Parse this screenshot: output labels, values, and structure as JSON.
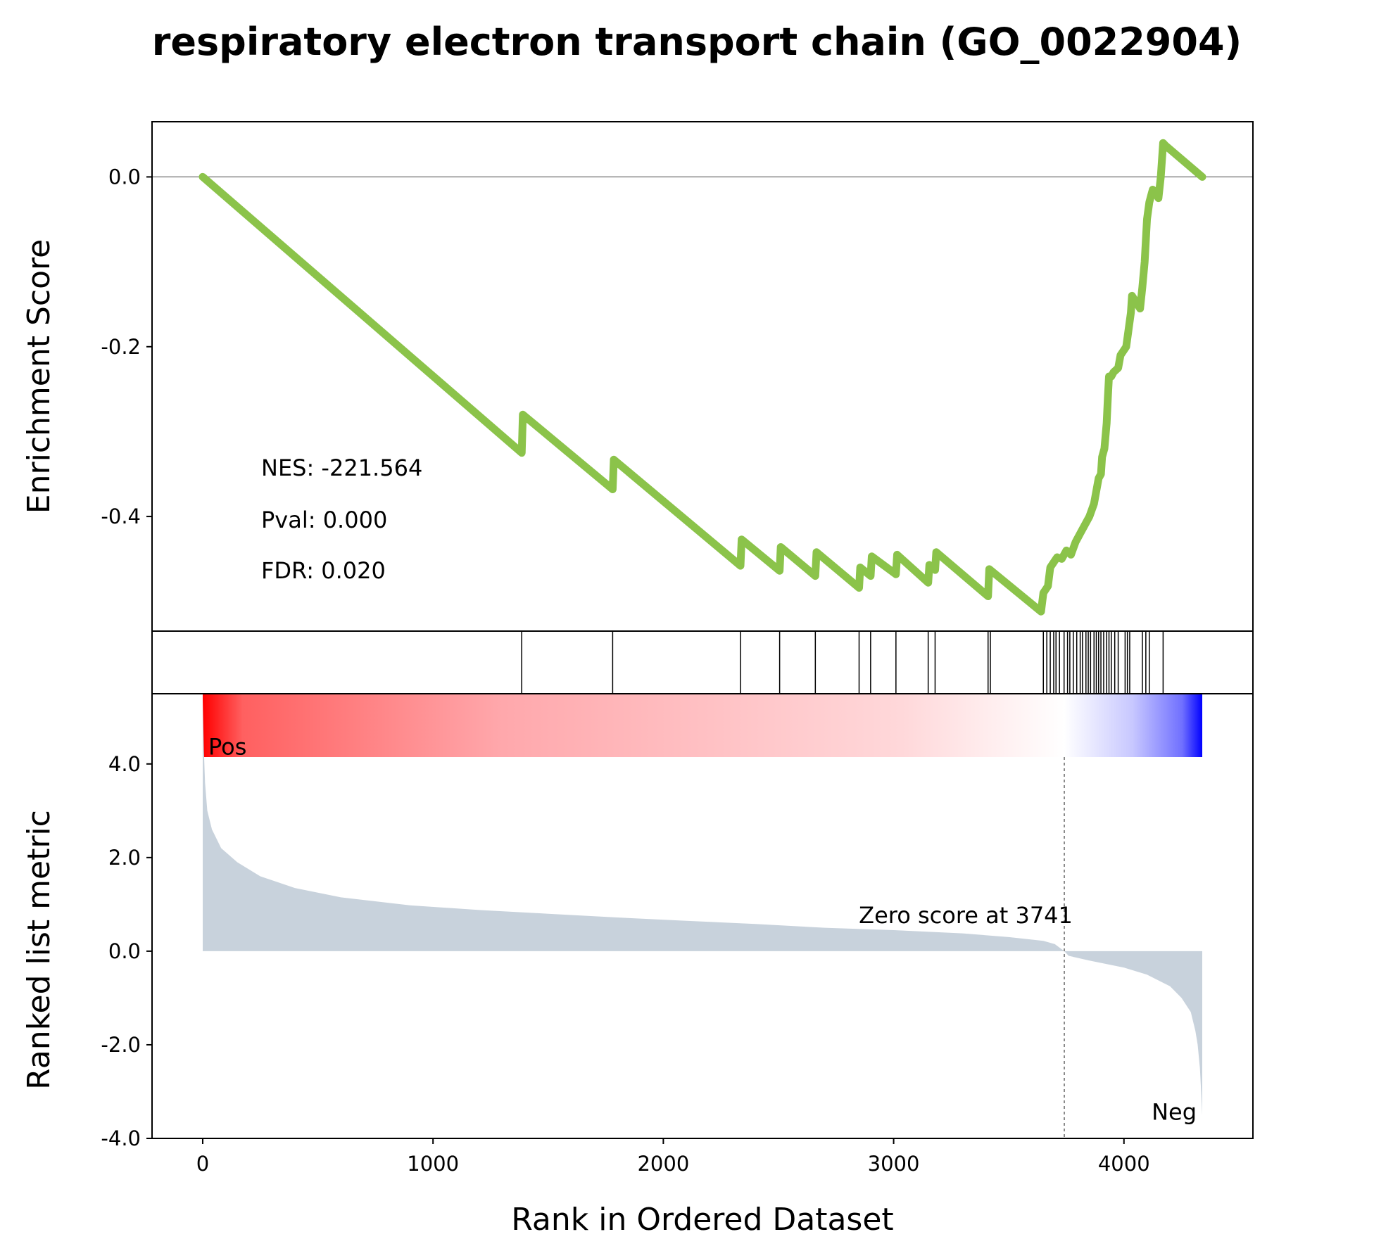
{
  "chart_data": {
    "type": "line",
    "title": "respiratory electron transport chain (GO_0022904)",
    "xlabel": "Rank in Ordered Dataset",
    "xlim": [
      -220,
      4560
    ],
    "x_ticks": [
      0,
      1000,
      2000,
      3000,
      4000
    ],
    "x_tick_labels": [
      "0",
      "1000",
      "2000",
      "3000",
      "4000"
    ],
    "enrichment_panel": {
      "ylabel": "Enrichment Score",
      "ylim": [
        -0.535,
        0.065
      ],
      "y_ticks": [
        0.0,
        -0.2,
        -0.4
      ],
      "y_tick_labels": [
        "0.0",
        "-0.2",
        "-0.4"
      ],
      "line_color": "#8bc34a",
      "series": [
        {
          "x": [
            0,
            1385,
            1390,
            1780,
            1785,
            2335,
            2340,
            2505,
            2510,
            2660,
            2665,
            2850,
            2855,
            2900,
            2905,
            3010,
            3015,
            3150,
            3155,
            3180,
            3185,
            3410,
            3415,
            3640,
            3650,
            3670,
            3680,
            3700,
            3710,
            3730,
            3750,
            3770,
            3790,
            3810,
            3830,
            3850,
            3870,
            3880,
            3890,
            3900,
            3905,
            3915,
            3925,
            3930,
            3935,
            3945,
            3955,
            3975,
            3985,
            4010,
            4020,
            4030,
            4035,
            4070,
            4080,
            4090,
            4100,
            4110,
            4120,
            4125,
            4140,
            4150,
            4160,
            4170,
            4180,
            4340
          ],
          "y": [
            0.0,
            -0.325,
            -0.28,
            -0.368,
            -0.333,
            -0.458,
            -0.427,
            -0.464,
            -0.436,
            -0.47,
            -0.442,
            -0.484,
            -0.46,
            -0.47,
            -0.447,
            -0.468,
            -0.445,
            -0.478,
            -0.457,
            -0.463,
            -0.442,
            -0.494,
            -0.462,
            -0.512,
            -0.49,
            -0.482,
            -0.46,
            -0.452,
            -0.448,
            -0.45,
            -0.44,
            -0.445,
            -0.43,
            -0.42,
            -0.41,
            -0.4,
            -0.385,
            -0.37,
            -0.355,
            -0.35,
            -0.33,
            -0.32,
            -0.29,
            -0.26,
            -0.235,
            -0.235,
            -0.23,
            -0.225,
            -0.21,
            -0.2,
            -0.18,
            -0.16,
            -0.14,
            -0.155,
            -0.13,
            -0.1,
            -0.05,
            -0.03,
            -0.02,
            -0.015,
            -0.02,
            -0.025,
            0.0,
            0.04,
            0.037,
            0.0
          ]
        }
      ],
      "stats": {
        "nes": "NES: -221.564",
        "pval": "Pval: 0.000",
        "fdr": "FDR: 0.020"
      }
    },
    "hits_panel": {
      "hit_positions": [
        1385,
        1780,
        2335,
        2505,
        2660,
        2850,
        2900,
        3010,
        3150,
        3180,
        3410,
        3420,
        3650,
        3665,
        3680,
        3695,
        3705,
        3720,
        3740,
        3755,
        3765,
        3780,
        3795,
        3810,
        3820,
        3835,
        3845,
        3855,
        3870,
        3880,
        3890,
        3900,
        3912,
        3925,
        3935,
        3945,
        3960,
        3975,
        4005,
        4015,
        4025,
        4080,
        4095,
        4110,
        4170
      ]
    },
    "ranking_panel": {
      "ylabel": "Ranked list metric",
      "ylim": [
        -4.0,
        5.5
      ],
      "y_ticks": [
        4.0,
        2.0,
        0.0,
        -2.0,
        -4.0
      ],
      "y_tick_labels": [
        "4.0",
        "2.0",
        "0.0",
        "-2.0",
        "-4.0"
      ],
      "fill_color": "#c8d2dc",
      "zero_cross": 3741,
      "zero_label": "Zero score at 3741",
      "pos_label": "Pos",
      "neg_label": "Neg",
      "pos_color": "#ff0000",
      "neg_color": "#0000ff",
      "series": {
        "x": [
          0,
          5,
          10,
          20,
          40,
          80,
          150,
          250,
          400,
          600,
          900,
          1200,
          1500,
          1800,
          2100,
          2400,
          2700,
          3000,
          3300,
          3500,
          3650,
          3700,
          3741,
          3760,
          3850,
          4000,
          4100,
          4200,
          4250,
          4290,
          4310,
          4320,
          4330,
          4335,
          4340
        ],
        "y": [
          5.4,
          4.3,
          3.6,
          3.0,
          2.6,
          2.2,
          1.9,
          1.6,
          1.35,
          1.15,
          0.98,
          0.88,
          0.8,
          0.72,
          0.65,
          0.58,
          0.5,
          0.45,
          0.38,
          0.3,
          0.22,
          0.15,
          0.0,
          -0.1,
          -0.2,
          -0.35,
          -0.5,
          -0.75,
          -1.0,
          -1.3,
          -1.7,
          -2.0,
          -2.5,
          -3.0,
          -3.5
        ]
      }
    }
  }
}
